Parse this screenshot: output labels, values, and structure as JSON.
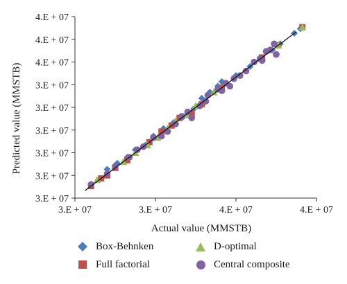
{
  "chart_data": {
    "type": "scatter",
    "xlabel": "Actual value (MMSTB)",
    "ylabel": "Predicted value (MMSTB)",
    "xlim": [
      30000000,
      42000000
    ],
    "ylim": [
      30000000,
      42000000
    ],
    "x_ticks": [
      30000000,
      34000000,
      38000000,
      42000000
    ],
    "x_tick_labels": [
      "3.E + 07",
      "3.E + 07",
      "4.E + 07",
      "4.E + 07"
    ],
    "y_ticks": [
      30000000,
      31500000,
      33000000,
      34500000,
      36000000,
      37500000,
      39000000,
      40500000,
      42000000
    ],
    "y_tick_labels": [
      "3.E + 07",
      "3.E + 07",
      "3.E + 07",
      "3.E + 07",
      "3.E + 07",
      "3.E + 07",
      "4.E + 07",
      "4.E + 07",
      "4.E + 07"
    ],
    "reference_line": {
      "x": [
        30500000,
        41000000
      ],
      "y": [
        30500000,
        41000000
      ]
    },
    "legend_position": "bottom",
    "series": [
      {
        "name": "Box-Behnken",
        "marker": "diamond",
        "color": "#4a7ebb",
        "points": [
          [
            31600000,
            31900000
          ],
          [
            32100000,
            32300000
          ],
          [
            32600000,
            32700000
          ],
          [
            33000000,
            33200000
          ],
          [
            33500000,
            33500000
          ],
          [
            33900000,
            34100000
          ],
          [
            34400000,
            34600000
          ],
          [
            34900000,
            35000000
          ],
          [
            35400000,
            35400000
          ],
          [
            35900000,
            35900000
          ],
          [
            36300000,
            36600000
          ],
          [
            36700000,
            37000000
          ],
          [
            37100000,
            37400000
          ],
          [
            37300000,
            37700000
          ],
          [
            38000000,
            38100000
          ],
          [
            38700000,
            38700000
          ],
          [
            39200000,
            39300000
          ],
          [
            39800000,
            39800000
          ],
          [
            40200000,
            40200000
          ],
          [
            40900000,
            40900000
          ],
          [
            41200000,
            41200000
          ]
        ]
      },
      {
        "name": "Full factorial",
        "marker": "square",
        "color": "#c0504d",
        "points": [
          [
            30800000,
            30800000
          ],
          [
            31300000,
            31300000
          ],
          [
            31600000,
            31500000
          ],
          [
            32000000,
            32000000
          ],
          [
            32600000,
            32500000
          ],
          [
            33700000,
            33700000
          ],
          [
            34300000,
            34400000
          ],
          [
            34800000,
            34800000
          ],
          [
            35200000,
            35300000
          ],
          [
            35800000,
            35600000
          ],
          [
            36300000,
            36200000
          ],
          [
            37300000,
            37300000
          ],
          [
            39300000,
            39300000
          ],
          [
            40100000,
            40100000
          ],
          [
            41300000,
            41300000
          ]
        ]
      },
      {
        "name": "D-optimal",
        "marker": "triangle",
        "color": "#9bbb59",
        "points": [
          [
            31100000,
            31200000
          ],
          [
            32400000,
            32400000
          ],
          [
            33000000,
            33000000
          ],
          [
            33600000,
            33500000
          ],
          [
            34100000,
            34000000
          ],
          [
            34600000,
            34600000
          ],
          [
            35000000,
            35100000
          ],
          [
            35500000,
            35500000
          ],
          [
            36000000,
            36100000
          ],
          [
            36900000,
            37000000
          ],
          [
            40100000,
            40100000
          ],
          [
            41300000,
            41300000
          ]
        ]
      },
      {
        "name": "Central composite",
        "marker": "circle",
        "color": "#8064a2",
        "points": [
          [
            30800000,
            30900000
          ],
          [
            31600000,
            31600000
          ],
          [
            32000000,
            32100000
          ],
          [
            32700000,
            32700000
          ],
          [
            33100000,
            33200000
          ],
          [
            33400000,
            33400000
          ],
          [
            33900000,
            34000000
          ],
          [
            34300000,
            34100000
          ],
          [
            34600000,
            34400000
          ],
          [
            35000000,
            34900000
          ],
          [
            35300000,
            35400000
          ],
          [
            35600000,
            35700000
          ],
          [
            35800000,
            35300000
          ],
          [
            36200000,
            36100000
          ],
          [
            36500000,
            36400000
          ],
          [
            36600000,
            36800000
          ],
          [
            37100000,
            37200000
          ],
          [
            37300000,
            37100000
          ],
          [
            37500000,
            37600000
          ],
          [
            37700000,
            37400000
          ],
          [
            37900000,
            37900000
          ],
          [
            38200000,
            38100000
          ],
          [
            38500000,
            38400000
          ],
          [
            38900000,
            39000000
          ],
          [
            39300000,
            39100000
          ],
          [
            39700000,
            39800000
          ],
          [
            39900000,
            40200000
          ],
          [
            40000000,
            39500000
          ],
          [
            39200000,
            39200000
          ],
          [
            39500000,
            39700000
          ]
        ]
      }
    ]
  }
}
